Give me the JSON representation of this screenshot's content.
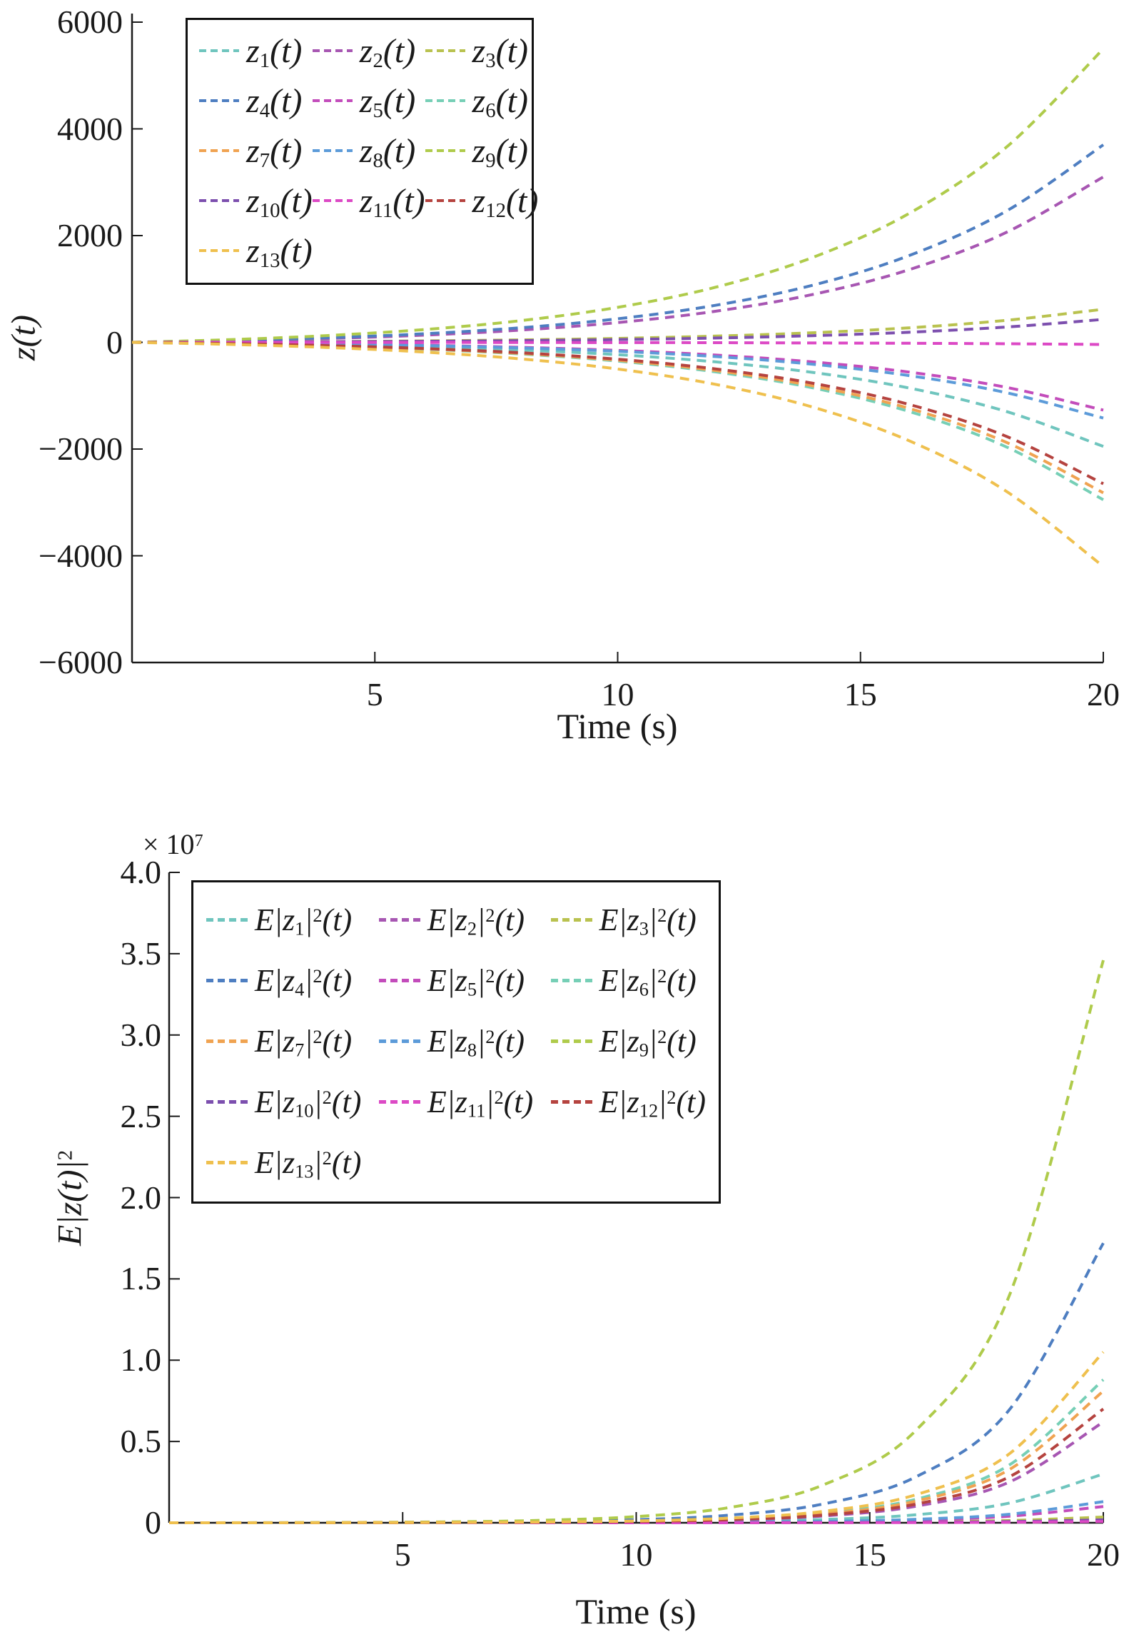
{
  "figure": {
    "panels": 2,
    "axis_color": "#1a1a1a",
    "background": "#ffffff"
  },
  "chart_data": [
    {
      "type": "line",
      "title": "",
      "xlabel": "Time (s)",
      "ylabel": "z(t)",
      "xlim": [
        0,
        20
      ],
      "ylim": [
        -6000,
        6000
      ],
      "grid": false,
      "legend_position": "top-left",
      "line_style": "dashed",
      "x_ticks": [
        {
          "value": 5,
          "label": "5"
        },
        {
          "value": 10,
          "label": "10"
        },
        {
          "value": 15,
          "label": "15"
        },
        {
          "value": 20,
          "label": "20"
        }
      ],
      "y_ticks": [
        {
          "value": 6000,
          "label": "6000"
        },
        {
          "value": 4000,
          "label": "4000"
        },
        {
          "value": 2000,
          "label": "2000"
        },
        {
          "value": 0,
          "label": "0"
        },
        {
          "value": -2000,
          "label": "−2000"
        },
        {
          "value": -4000,
          "label": "−4000"
        },
        {
          "value": -6000,
          "label": "−6000"
        }
      ],
      "x": [
        0,
        2,
        4,
        6,
        8,
        10,
        12,
        14,
        16,
        18,
        20
      ],
      "series": [
        {
          "name": "z_1(t)",
          "color": "#6FC5BE",
          "values": [
            0,
            -18,
            -45,
            -84,
            -144,
            -232,
            -365,
            -562,
            -856,
            -1295,
            -1950
          ]
        },
        {
          "name": "z_2(t)",
          "color": "#A756B2",
          "values": [
            0,
            28,
            71,
            134,
            229,
            370,
            580,
            893,
            1361,
            2059,
            3100
          ]
        },
        {
          "name": "z_3(t)",
          "color": "#B9C24F",
          "values": [
            0,
            6,
            14,
            27,
            46,
            74,
            116,
            179,
            272,
            412,
            620
          ]
        },
        {
          "name": "z_4(t)",
          "color": "#4E7EC1",
          "values": [
            0,
            34,
            85,
            160,
            273,
            441,
            692,
            1066,
            1625,
            2457,
            3700
          ]
        },
        {
          "name": "z_5(t)",
          "color": "#C34CBB",
          "values": [
            0,
            -12,
            -29,
            -55,
            -94,
            -151,
            -238,
            -366,
            -558,
            -843,
            -1270
          ]
        },
        {
          "name": "z_6(t)",
          "color": "#76CFB6",
          "values": [
            0,
            -27,
            -67,
            -128,
            -218,
            -352,
            -552,
            -850,
            -1295,
            -1959,
            -2950
          ]
        },
        {
          "name": "z_7(t)",
          "color": "#F0A351",
          "values": [
            0,
            -26,
            -64,
            -122,
            -208,
            -336,
            -527,
            -813,
            -1238,
            -1873,
            -2820
          ]
        },
        {
          "name": "z_8(t)",
          "color": "#5C9BD9",
          "values": [
            0,
            -13,
            -32,
            -61,
            -105,
            -169,
            -266,
            -409,
            -623,
            -943,
            -1420
          ]
        },
        {
          "name": "z_9(t)",
          "color": "#AFCB4B",
          "values": [
            0,
            50,
            126,
            238,
            406,
            656,
            1029,
            1585,
            2415,
            3653,
            5500
          ]
        },
        {
          "name": "z_10(t)",
          "color": "#7C4FAE",
          "values": [
            0,
            4,
            10,
            19,
            32,
            51,
            80,
            124,
            189,
            286,
            430
          ]
        },
        {
          "name": "z_11(t)",
          "color": "#DC49C5",
          "values": [
            0,
            0,
            -1,
            -2,
            -3,
            -5,
            -7,
            -12,
            -18,
            -27,
            -40
          ]
        },
        {
          "name": "z_12(t)",
          "color": "#B5433F",
          "values": [
            0,
            -24,
            -61,
            -115,
            -195,
            -316,
            -496,
            -764,
            -1164,
            -1760,
            -2650
          ]
        },
        {
          "name": "z_13(t)",
          "color": "#EFC04E",
          "values": [
            0,
            -39,
            -96,
            -182,
            -310,
            -501,
            -785,
            -1210,
            -1844,
            -2790,
            -4200
          ]
        }
      ]
    },
    {
      "type": "line",
      "title": "",
      "xlabel": "Time (s)",
      "ylabel": "E|z(t)|^2",
      "y_multiplier": "× 10^7",
      "xlim": [
        0,
        20
      ],
      "ylim": [
        0,
        4.0
      ],
      "grid": false,
      "legend_position": "top-left",
      "line_style": "dashed",
      "x_ticks": [
        {
          "value": 5,
          "label": "5"
        },
        {
          "value": 10,
          "label": "10"
        },
        {
          "value": 15,
          "label": "15"
        },
        {
          "value": 20,
          "label": "20"
        }
      ],
      "y_ticks": [
        {
          "value": 4.0,
          "label": "4.0"
        },
        {
          "value": 3.5,
          "label": "3.5"
        },
        {
          "value": 3.0,
          "label": "3.0"
        },
        {
          "value": 2.5,
          "label": "2.5"
        },
        {
          "value": 2.0,
          "label": "2.0"
        },
        {
          "value": 1.5,
          "label": "1.5"
        },
        {
          "value": 1.0,
          "label": "1.0"
        },
        {
          "value": 0.5,
          "label": "0.5"
        },
        {
          "value": 0,
          "label": "0"
        }
      ],
      "x": [
        0,
        2,
        4,
        6,
        8,
        10,
        12,
        14,
        16,
        18,
        20
      ],
      "units": "1e7",
      "series": [
        {
          "name": "E|z_1|^2(t)",
          "color": "#6FC5BE",
          "values": [
            0,
            0.0001,
            0.0002,
            0.0005,
            0.0013,
            0.0033,
            0.0082,
            0.0201,
            0.0496,
            0.1219,
            0.3
          ]
        },
        {
          "name": "E|z_2|^2(t)",
          "color": "#A756B2",
          "values": [
            0,
            0.0001,
            0.0004,
            0.0011,
            0.0027,
            0.0068,
            0.0169,
            0.0416,
            0.1024,
            0.252,
            0.62
          ]
        },
        {
          "name": "E|z_3|^2(t)",
          "color": "#B9C24F",
          "values": [
            0,
            0,
            0,
            0.0001,
            0.0002,
            0.0004,
            0.001,
            0.0023,
            0.0058,
            0.0142,
            0.035
          ]
        },
        {
          "name": "E|z_4|^2(t)",
          "color": "#4E7EC1",
          "values": [
            0,
            0.0003,
            0.0011,
            0.0029,
            0.0076,
            0.0189,
            0.0468,
            0.1154,
            0.2841,
            0.6992,
            1.72
          ]
        },
        {
          "name": "E|z_5|^2(t)",
          "color": "#C34CBB",
          "values": [
            0,
            0,
            0.0001,
            0.0002,
            0.0004,
            0.0011,
            0.0027,
            0.0067,
            0.0165,
            0.0406,
            0.1
          ]
        },
        {
          "name": "E|z_6|^2(t)",
          "color": "#76CFB6",
          "values": [
            0,
            0.0002,
            0.0005,
            0.0015,
            0.0039,
            0.0097,
            0.0239,
            0.059,
            0.1454,
            0.3577,
            0.88
          ]
        },
        {
          "name": "E|z_7|^2(t)",
          "color": "#F0A351",
          "values": [
            0,
            0.0001,
            0.0005,
            0.0014,
            0.0036,
            0.0089,
            0.022,
            0.0543,
            0.1338,
            0.3293,
            0.81
          ]
        },
        {
          "name": "E|z_8|^2(t)",
          "color": "#5C9BD9",
          "values": [
            0,
            0,
            0.0001,
            0.0002,
            0.0006,
            0.0014,
            0.0035,
            0.0087,
            0.0215,
            0.0528,
            0.13
          ]
        },
        {
          "name": "E|z_9|^2(t)",
          "color": "#AFCB4B",
          "values": [
            0,
            0.0006,
            0.0022,
            0.0059,
            0.0152,
            0.038,
            0.0941,
            0.2321,
            0.5716,
            1.4065,
            3.46
          ]
        },
        {
          "name": "E|z_10|^2(t)",
          "color": "#7C4FAE",
          "values": [
            0,
            0,
            0,
            0,
            0.0001,
            0.0002,
            0.0005,
            0.0012,
            0.003,
            0.0073,
            0.018
          ]
        },
        {
          "name": "E|z_11|^2(t)",
          "color": "#DC49C5",
          "values": [
            0,
            0,
            0,
            0,
            0,
            0.0001,
            0.0002,
            0.0005,
            0.0013,
            0.0033,
            0.008
          ]
        },
        {
          "name": "E|z_12|^2(t)",
          "color": "#B5433F",
          "values": [
            0,
            0.0001,
            0.0004,
            0.0012,
            0.0031,
            0.0077,
            0.019,
            0.047,
            0.1156,
            0.2845,
            0.7
          ]
        },
        {
          "name": "E|z_13|^2(t)",
          "color": "#EFC04E",
          "values": [
            0,
            0.0002,
            0.0007,
            0.0018,
            0.0046,
            0.0115,
            0.0286,
            0.0704,
            0.1735,
            0.4268,
            1.05
          ]
        }
      ]
    }
  ]
}
